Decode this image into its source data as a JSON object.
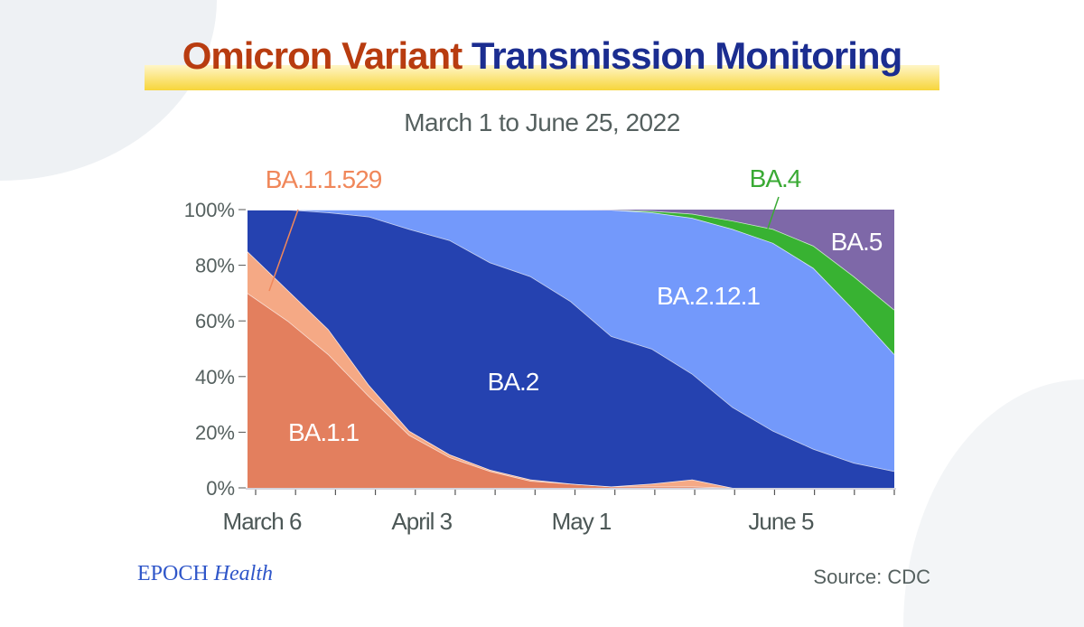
{
  "title": {
    "part1": "Omicron Variant",
    "part2": "Transmission Monitoring"
  },
  "subtitle": "March 1 to June 25, 2022",
  "logo": {
    "brand": "EPOCH",
    "section": "Health"
  },
  "source": "Source: CDC",
  "chart_data": {
    "type": "area",
    "stacked": "percent",
    "title": "Omicron Variant Transmission Monitoring",
    "subtitle": "March 1 to June 25, 2022",
    "xlabel": "",
    "ylabel": "",
    "ylim": [
      0,
      100
    ],
    "y_ticks": [
      "0%",
      "20%",
      "40%",
      "60%",
      "80%",
      "100%"
    ],
    "x": [
      "Mar 6",
      "Mar 13",
      "Mar 20",
      "Mar 27",
      "Apr 3",
      "Apr 10",
      "Apr 17",
      "Apr 24",
      "May 1",
      "May 8",
      "May 15",
      "May 22",
      "May 29",
      "Jun 5",
      "Jun 12",
      "Jun 19",
      "Jun 25"
    ],
    "x_tick_labels": [
      {
        "index": 0,
        "label": "March 6"
      },
      {
        "index": 4,
        "label": "April 3"
      },
      {
        "index": 8,
        "label": "May 1"
      },
      {
        "index": 13,
        "label": "June 5"
      }
    ],
    "series": [
      {
        "name": "BA.1.1",
        "color": "#e37f5e",
        "values": [
          70,
          60,
          48,
          33,
          19,
          11,
          6,
          2.5,
          1.5,
          0.5,
          0.5,
          0.5,
          0,
          0,
          0,
          0,
          0
        ]
      },
      {
        "name": "BA.1.1.529",
        "color": "#f5a985",
        "values": [
          15,
          11,
          9,
          4,
          1.5,
          1,
          0.5,
          0.5,
          0,
          0,
          1,
          2.5,
          0,
          0,
          0,
          0,
          0
        ]
      },
      {
        "name": "BA.2",
        "color": "#2542b0",
        "values": [
          15,
          29,
          42,
          60.5,
          72.5,
          77,
          74.5,
          73,
          65.5,
          54,
          48.5,
          38,
          29,
          20.5,
          14,
          9,
          6
        ]
      },
      {
        "name": "BA.2.12.1",
        "color": "#7399fb",
        "values": [
          0,
          0,
          1,
          2.5,
          7,
          11,
          19,
          24,
          33,
          45.4,
          49,
          56,
          64,
          67.5,
          65,
          55,
          42
        ]
      },
      {
        "name": "BA.4",
        "color": "#38b232",
        "values": [
          0,
          0,
          0,
          0,
          0,
          0,
          0,
          0,
          0,
          0,
          0.5,
          1.5,
          3,
          5,
          8,
          12,
          16
        ]
      },
      {
        "name": "BA.5",
        "color": "#7e68a8",
        "values": [
          0,
          0,
          0,
          0,
          0,
          0,
          0,
          0,
          0,
          0.1,
          0.5,
          1.5,
          4,
          7,
          13,
          24,
          36
        ]
      }
    ],
    "grid": false,
    "legend": "none (inline labels)"
  }
}
